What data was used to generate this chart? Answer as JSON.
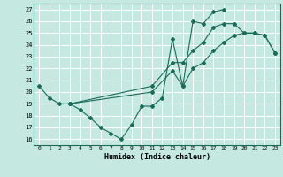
{
  "xlabel": "Humidex (Indice chaleur)",
  "bg_color": "#c5e8e0",
  "grid_color": "#ffffff",
  "line_color": "#1a6b5a",
  "xlim": [
    -0.5,
    23.5
  ],
  "ylim": [
    15.5,
    27.5
  ],
  "xticks": [
    0,
    1,
    2,
    3,
    4,
    5,
    6,
    7,
    8,
    9,
    10,
    11,
    12,
    13,
    14,
    15,
    16,
    17,
    18,
    19,
    20,
    21,
    22,
    23
  ],
  "yticks": [
    16,
    17,
    18,
    19,
    20,
    21,
    22,
    23,
    24,
    25,
    26,
    27
  ],
  "line1_x": [
    0,
    1,
    2,
    3,
    4,
    5,
    6,
    7,
    8,
    9,
    10,
    11,
    12,
    13,
    14,
    15,
    16,
    17,
    18
  ],
  "line1_y": [
    20.5,
    19.5,
    19.0,
    19.0,
    18.5,
    17.8,
    17.0,
    16.5,
    16.0,
    17.2,
    18.8,
    18.8,
    19.5,
    24.5,
    20.5,
    26.0,
    25.8,
    26.8,
    27.0
  ],
  "line2_x": [
    3,
    11,
    13,
    14,
    15,
    16,
    17,
    18,
    19,
    20,
    21,
    22,
    23
  ],
  "line2_y": [
    19.0,
    20.0,
    21.8,
    20.5,
    22.0,
    22.5,
    23.5,
    24.2,
    24.8,
    25.0,
    25.0,
    24.8,
    23.3
  ],
  "line3_x": [
    3,
    11,
    13,
    14,
    15,
    16,
    17,
    18,
    19,
    20,
    21,
    22,
    23
  ],
  "line3_y": [
    19.0,
    20.5,
    22.5,
    22.5,
    23.5,
    24.2,
    25.5,
    25.8,
    25.8,
    25.0,
    25.0,
    24.8,
    23.3
  ]
}
